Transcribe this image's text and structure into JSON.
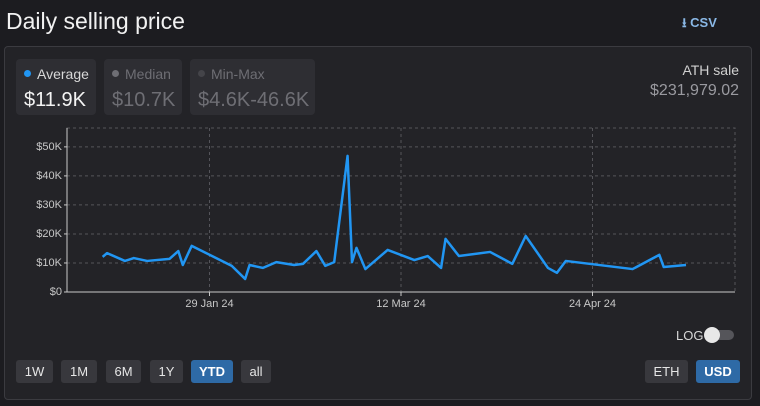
{
  "header": {
    "title": "Daily selling price",
    "csv": "CSV"
  },
  "stats": [
    {
      "label": "Average",
      "value": "$11.9K"
    },
    {
      "label": "Median",
      "value": "$10.7K"
    },
    {
      "label": "Min-Max",
      "value": "$4.6K-46.6K"
    }
  ],
  "ath": {
    "label": "ATH sale",
    "value": "$231,979.02"
  },
  "log_toggle": {
    "label": "LOG",
    "on": false
  },
  "ranges": [
    "1W",
    "1M",
    "6M",
    "1Y",
    "YTD",
    "all"
  ],
  "active_range": "YTD",
  "currencies": [
    "ETH",
    "USD"
  ],
  "active_currency": "USD",
  "chart_data": {
    "type": "line",
    "color": "#2196f3",
    "grid": true,
    "log_scale": false,
    "x": [
      "2024-01-05",
      "2024-01-06",
      "2024-01-10",
      "2024-01-12",
      "2024-01-15",
      "2024-01-20",
      "2024-01-22",
      "2024-01-23",
      "2024-01-25",
      "2024-02-03",
      "2024-02-06",
      "2024-02-07",
      "2024-02-10",
      "2024-02-13",
      "2024-02-17",
      "2024-02-19",
      "2024-02-22",
      "2024-02-24",
      "2024-02-26",
      "2024-02-29",
      "2024-03-01",
      "2024-03-02",
      "2024-03-04",
      "2024-03-09",
      "2024-03-15",
      "2024-03-18",
      "2024-03-21",
      "2024-03-22",
      "2024-03-25",
      "2024-04-01",
      "2024-04-06",
      "2024-04-09",
      "2024-04-14",
      "2024-04-16",
      "2024-04-18",
      "2024-05-03",
      "2024-05-09",
      "2024-05-10",
      "2024-05-15"
    ],
    "values": [
      12100,
      13400,
      10700,
      11700,
      10700,
      11400,
      14100,
      9300,
      15900,
      9000,
      4500,
      9300,
      8300,
      10300,
      9300,
      9700,
      14100,
      9000,
      10300,
      46900,
      10300,
      15200,
      7900,
      14500,
      11000,
      12400,
      8300,
      18300,
      12400,
      13800,
      9700,
      19300,
      8300,
      6600,
      10700,
      7900,
      12800,
      8600,
      9300
    ],
    "xlim": [
      "2023-12-28",
      "2024-05-26"
    ],
    "xticks": [
      {
        "value": "2024-01-29",
        "label": "29 Jan 24"
      },
      {
        "value": "2024-03-12",
        "label": "12 Mar 24"
      },
      {
        "value": "2024-04-24",
        "label": "24 Apr 24"
      }
    ],
    "ylim": [
      0,
      56500
    ],
    "yticks": [
      {
        "value": 0,
        "label": "$0"
      },
      {
        "value": 10000,
        "label": "$10K"
      },
      {
        "value": 20000,
        "label": "$20K"
      },
      {
        "value": 30000,
        "label": "$30K"
      },
      {
        "value": 40000,
        "label": "$40K"
      },
      {
        "value": 50000,
        "label": "$50K"
      }
    ]
  }
}
